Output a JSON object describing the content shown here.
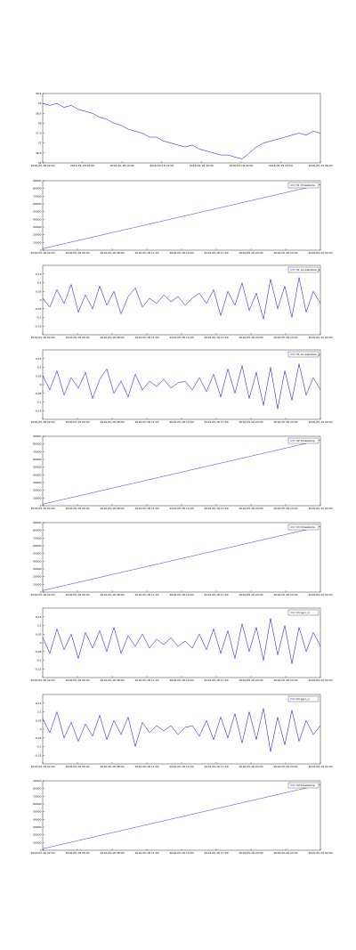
{
  "chart_data": [
    {
      "type": "line",
      "color": "#0000ff",
      "ylim": [
        36,
        39.5
      ],
      "yticks": [
        36,
        36.5,
        37,
        37.5,
        38,
        38.5,
        39,
        39.5
      ],
      "xticks": [
        "2016-05-18 02:00",
        "2016-05-18 06:00",
        "2016-05-18 10:00",
        "2016-05-18 14:00",
        "2016-05-18 18:00",
        "2016-05-18 22:00",
        "2016-05-19 02:00",
        "2016-05-19 06:00"
      ],
      "values": [
        39.0,
        38.9,
        39.0,
        38.8,
        38.9,
        38.7,
        38.6,
        38.5,
        38.3,
        38.2,
        38.0,
        37.9,
        37.7,
        37.6,
        37.5,
        37.3,
        37.3,
        37.1,
        37.0,
        36.9,
        36.8,
        36.9,
        36.7,
        36.6,
        36.5,
        36.4,
        36.4,
        36.3,
        36.2,
        36.5,
        36.8,
        37.0,
        37.1,
        37.2,
        37.3,
        37.4,
        37.5,
        37.4,
        37.6,
        37.5
      ]
    },
    {
      "type": "line",
      "color": "#0000ff",
      "legend": "S1 timestamp",
      "ylim": [
        0,
        90000
      ],
      "yticks": [
        0,
        10000,
        20000,
        30000,
        40000,
        50000,
        60000,
        70000,
        80000,
        90000
      ],
      "xticks": [
        "2016-05-18 02:00",
        "2016-05-18 05:00",
        "2016-05-18 08:00",
        "2016-05-18 11:00",
        "2016-05-18 14:00",
        "2016-05-18 17:00",
        "2016-05-18 20:00",
        "2016-05-18 23:00",
        "2016-05-19 02:00"
      ],
      "values": [
        2000,
        85000
      ]
    },
    {
      "type": "line",
      "color": "#0000ff",
      "legend": "S1 acceleration_x",
      "ylim": [
        -0.2,
        0.2
      ],
      "yticks": [
        -0.15,
        -0.1,
        -0.05,
        0,
        0.05,
        0.1,
        0.15
      ],
      "xticks": [
        "2016-05-18 02:00",
        "2016-05-18 05:00",
        "2016-05-18 08:00",
        "2016-05-18 11:00",
        "2016-05-18 14:00",
        "2016-05-18 17:00",
        "2016-05-18 20:00",
        "2016-05-18 23:00",
        "2016-05-19 02:00"
      ],
      "values": [
        0.01,
        -0.04,
        0.06,
        -0.02,
        0.09,
        -0.07,
        0.03,
        -0.05,
        0.08,
        -0.03,
        0.05,
        -0.08,
        0.02,
        0.07,
        -0.04,
        0.01,
        -0.02,
        0.03,
        -0.01,
        0.02,
        -0.03,
        0.01,
        0.04,
        -0.02,
        0.06,
        -0.09,
        0.05,
        -0.03,
        0.1,
        -0.06,
        0.04,
        -0.11,
        0.12,
        -0.05,
        0.08,
        -0.1,
        0.13,
        -0.07,
        0.05,
        -0.02
      ]
    },
    {
      "type": "line",
      "color": "#0000ff",
      "legend": "S1 acceleration_y",
      "ylim": [
        -0.2,
        0.2
      ],
      "yticks": [
        -0.15,
        -0.1,
        -0.05,
        0,
        0.05,
        0.1,
        0.15
      ],
      "xticks": [
        "2016-05-18 02:00",
        "2016-05-18 05:00",
        "2016-05-18 08:00",
        "2016-05-18 11:00",
        "2016-05-18 14:00",
        "2016-05-18 17:00",
        "2016-05-18 20:00",
        "2016-05-18 23:00",
        "2016-05-19 02:00"
      ],
      "values": [
        0.05,
        -0.03,
        0.08,
        -0.06,
        0.04,
        -0.02,
        0.07,
        -0.08,
        0.03,
        0.09,
        -0.05,
        0.02,
        -0.07,
        0.06,
        -0.03,
        0.02,
        -0.01,
        0.03,
        -0.02,
        0.01,
        0.02,
        -0.03,
        0.04,
        -0.04,
        0.06,
        -0.07,
        0.09,
        -0.05,
        0.11,
        -0.08,
        0.07,
        -0.12,
        0.1,
        -0.14,
        0.08,
        -0.09,
        0.12,
        -0.06,
        0.04,
        -0.03
      ]
    },
    {
      "type": "line",
      "color": "#0000ff",
      "legend": "S2 timestamp",
      "ylim": [
        0,
        90000
      ],
      "yticks": [
        0,
        10000,
        20000,
        30000,
        40000,
        50000,
        60000,
        70000,
        80000,
        90000
      ],
      "xticks": [
        "2016-05-18 02:00",
        "2016-05-18 05:00",
        "2016-05-18 08:00",
        "2016-05-18 11:00",
        "2016-05-18 14:00",
        "2016-05-18 17:00",
        "2016-05-18 20:00",
        "2016-05-18 23:00",
        "2016-05-19 02:00"
      ],
      "values": [
        2000,
        85000
      ]
    },
    {
      "type": "line",
      "color": "#0000ff",
      "legend": "S3 timestamp",
      "ylim": [
        0,
        90000
      ],
      "yticks": [
        0,
        10000,
        20000,
        30000,
        40000,
        50000,
        60000,
        70000,
        80000,
        90000
      ],
      "xticks": [
        "2016-05-18 02:00",
        "2016-05-18 05:00",
        "2016-05-18 08:00",
        "2016-05-18 11:00",
        "2016-05-18 14:00",
        "2016-05-18 17:00",
        "2016-05-18 20:00",
        "2016-05-18 23:00",
        "2016-05-19 02:00"
      ],
      "values": [
        2000,
        85000
      ]
    },
    {
      "type": "line",
      "color": "#0000ff",
      "legend": "S3 gyro_x",
      "ylim": [
        -0.2,
        0.2
      ],
      "yticks": [
        -0.15,
        -0.1,
        -0.05,
        0,
        0.05,
        0.1,
        0.15
      ],
      "xticks": [
        "2016-05-18 02:00",
        "2016-05-18 05:00",
        "2016-05-18 08:00",
        "2016-05-18 11:00",
        "2016-05-18 14:00",
        "2016-05-18 17:00",
        "2016-05-18 20:00",
        "2016-05-18 23:00",
        "2016-05-19 02:00"
      ],
      "values": [
        0.03,
        -0.06,
        0.08,
        -0.04,
        0.05,
        -0.09,
        0.06,
        -0.03,
        0.07,
        -0.05,
        0.09,
        -0.06,
        0.04,
        -0.02,
        0.05,
        -0.03,
        0.02,
        -0.01,
        0.03,
        -0.02,
        0.01,
        -0.03,
        0.05,
        -0.04,
        0.08,
        -0.06,
        0.07,
        -0.09,
        0.11,
        -0.05,
        0.09,
        -0.1,
        0.14,
        -0.07,
        0.1,
        -0.12,
        0.09,
        -0.05,
        0.06,
        -0.02
      ]
    },
    {
      "type": "line",
      "color": "#0000ff",
      "legend": "S3 gyro_y",
      "ylim": [
        -0.2,
        0.2
      ],
      "yticks": [
        -0.15,
        -0.1,
        -0.05,
        0,
        0.05,
        0.1,
        0.15
      ],
      "xticks": [
        "2016-05-18 02:00",
        "2016-05-18 05:00",
        "2016-05-18 08:00",
        "2016-05-18 11:00",
        "2016-05-18 14:00",
        "2016-05-18 17:00",
        "2016-05-18 20:00",
        "2016-05-18 23:00",
        "2016-05-19 02:00"
      ],
      "values": [
        0.06,
        -0.02,
        0.1,
        -0.05,
        0.04,
        -0.07,
        0.03,
        -0.04,
        0.08,
        -0.06,
        0.05,
        -0.03,
        0.07,
        -0.1,
        0.04,
        -0.02,
        0.02,
        -0.01,
        0.02,
        -0.03,
        0.01,
        0.02,
        -0.04,
        0.05,
        -0.06,
        0.07,
        -0.05,
        0.09,
        -0.08,
        0.1,
        -0.06,
        0.12,
        -0.13,
        0.07,
        -0.09,
        0.11,
        -0.07,
        0.05,
        -0.03,
        0.02
      ]
    },
    {
      "type": "line",
      "color": "#0000ff",
      "legend": "S4 timestamp",
      "ylim": [
        0,
        90000
      ],
      "yticks": [
        0,
        10000,
        20000,
        30000,
        40000,
        50000,
        60000,
        70000,
        80000,
        90000
      ],
      "xticks": [
        "2016-05-18 02:00",
        "2016-05-18 05:00",
        "2016-05-18 08:00",
        "2016-05-18 11:00",
        "2016-05-18 14:00",
        "2016-05-18 17:00",
        "2016-05-18 20:00",
        "2016-05-18 23:00",
        "2016-05-19 02:00"
      ],
      "values": [
        2000,
        85000
      ]
    }
  ]
}
